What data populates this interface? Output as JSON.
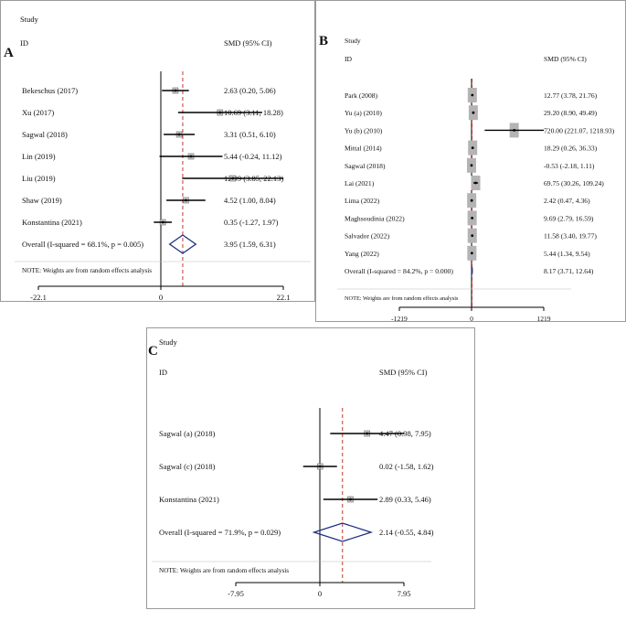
{
  "colors": {
    "frame": "#9a9a9a",
    "axis": "#000000",
    "refline": "#c0392b",
    "ci": "#000000",
    "diamond": "#1f2f80",
    "box": "#b4b4b4"
  },
  "headers": {
    "study": "Study",
    "id": "ID",
    "smd": "SMD (95% CI)",
    "note": "NOTE: Weights are from random effects analysis"
  },
  "chart_data": [
    {
      "type": "forest",
      "panel_letter": "A",
      "xlim": [
        -22.1,
        22.1
      ],
      "ticks": [
        "-22.1",
        "0",
        "22.1"
      ],
      "studies": [
        {
          "label": "Bekeschus (2017)",
          "smd": 2.63,
          "lo": 0.2,
          "hi": 5.06,
          "text": "2.63 (0.20, 5.06)"
        },
        {
          "label": "Xu (2017)",
          "smd": 10.69,
          "lo": 3.11,
          "hi": 18.28,
          "text": "10.69 (3.11, 18.28)"
        },
        {
          "label": "Sagwal (2018)",
          "smd": 3.31,
          "lo": 0.51,
          "hi": 6.1,
          "text": "3.31 (0.51, 6.10)"
        },
        {
          "label": "Lin (2019)",
          "smd": 5.44,
          "lo": -0.24,
          "hi": 11.12,
          "text": "5.44 (-0.24, 11.12)"
        },
        {
          "label": "Liu (2019)",
          "smd": 12.99,
          "lo": 3.85,
          "hi": 22.13,
          "text": "12.99 (3.85, 22.13)"
        },
        {
          "label": "Shaw (2019)",
          "smd": 4.52,
          "lo": 1.0,
          "hi": 8.04,
          "text": "4.52 (1.00, 8.04)"
        },
        {
          "label": "Konstantina (2021)",
          "smd": 0.35,
          "lo": -1.27,
          "hi": 1.97,
          "text": "0.35 (-1.27, 1.97)"
        }
      ],
      "overall": {
        "label": "Overall  (I-squared = 68.1%, p = 0.005)",
        "smd": 3.95,
        "lo": 1.59,
        "hi": 6.31,
        "text": "3.95 (1.59, 6.31)"
      }
    },
    {
      "type": "forest",
      "panel_letter": "B",
      "xlim": [
        -1219,
        1219
      ],
      "ticks": [
        "-1219",
        "0",
        "1219"
      ],
      "studies": [
        {
          "label": "Park (2008)",
          "smd": 12.77,
          "lo": 3.78,
          "hi": 21.76,
          "text": "12.77 (3.78, 21.76)"
        },
        {
          "label": "Yu (a) (2010)",
          "smd": 29.2,
          "lo": 8.9,
          "hi": 49.49,
          "text": "29.20 (8.90, 49.49)"
        },
        {
          "label": "Yu (b) (2010)",
          "smd": 720.0,
          "lo": 221.07,
          "hi": 1218.93,
          "text": "720.00 (221.07, 1218.93)"
        },
        {
          "label": "Mittal (2014)",
          "smd": 18.29,
          "lo": 0.26,
          "hi": 36.33,
          "text": "18.29 (0.26, 36.33)"
        },
        {
          "label": "Sagwal (2018)",
          "smd": -0.53,
          "lo": -2.18,
          "hi": 1.11,
          "text": "-0.53 (-2.18, 1.11)"
        },
        {
          "label": "Lai (2021)",
          "smd": 69.75,
          "lo": 30.26,
          "hi": 109.24,
          "text": "69.75 (30.26, 109.24)"
        },
        {
          "label": "Lima (2022)",
          "smd": 2.42,
          "lo": 0.47,
          "hi": 4.36,
          "text": "2.42 (0.47, 4.36)"
        },
        {
          "label": "Maghsoudinia (2022)",
          "smd": 9.69,
          "lo": 2.79,
          "hi": 16.59,
          "text": "9.69 (2.79, 16.59)"
        },
        {
          "label": "Salvador (2022)",
          "smd": 11.58,
          "lo": 3.4,
          "hi": 19.77,
          "text": "11.58 (3.40, 19.77)"
        },
        {
          "label": "Yang (2022)",
          "smd": 5.44,
          "lo": 1.34,
          "hi": 9.54,
          "text": "5.44 (1.34, 9.54)"
        }
      ],
      "overall": {
        "label": "Overall   (I-squared = 84.2%, p = 0.000)",
        "smd": 8.17,
        "lo": 3.71,
        "hi": 12.64,
        "text": "8.17 (3.71, 12.64)"
      }
    },
    {
      "type": "forest",
      "panel_letter": "C",
      "xlim": [
        -7.95,
        7.95
      ],
      "ticks": [
        "-7.95",
        "0",
        "7.95"
      ],
      "studies": [
        {
          "label": "Sagwal (a) (2018)",
          "smd": 4.47,
          "lo": 0.98,
          "hi": 7.95,
          "text": "4.47 (0.98, 7.95)"
        },
        {
          "label": "Sagwal (c) (2018)",
          "smd": 0.02,
          "lo": -1.58,
          "hi": 1.62,
          "text": "0.02 (-1.58, 1.62)"
        },
        {
          "label": "Konstantina (2021)",
          "smd": 2.89,
          "lo": 0.33,
          "hi": 5.46,
          "text": "2.89 (0.33, 5.46)"
        }
      ],
      "overall": {
        "label": "Overall  (I-squared = 71.9%, p = 0.029)",
        "smd": 2.14,
        "lo": -0.55,
        "hi": 4.84,
        "text": "2.14 (-0.55, 4.84)"
      }
    }
  ]
}
